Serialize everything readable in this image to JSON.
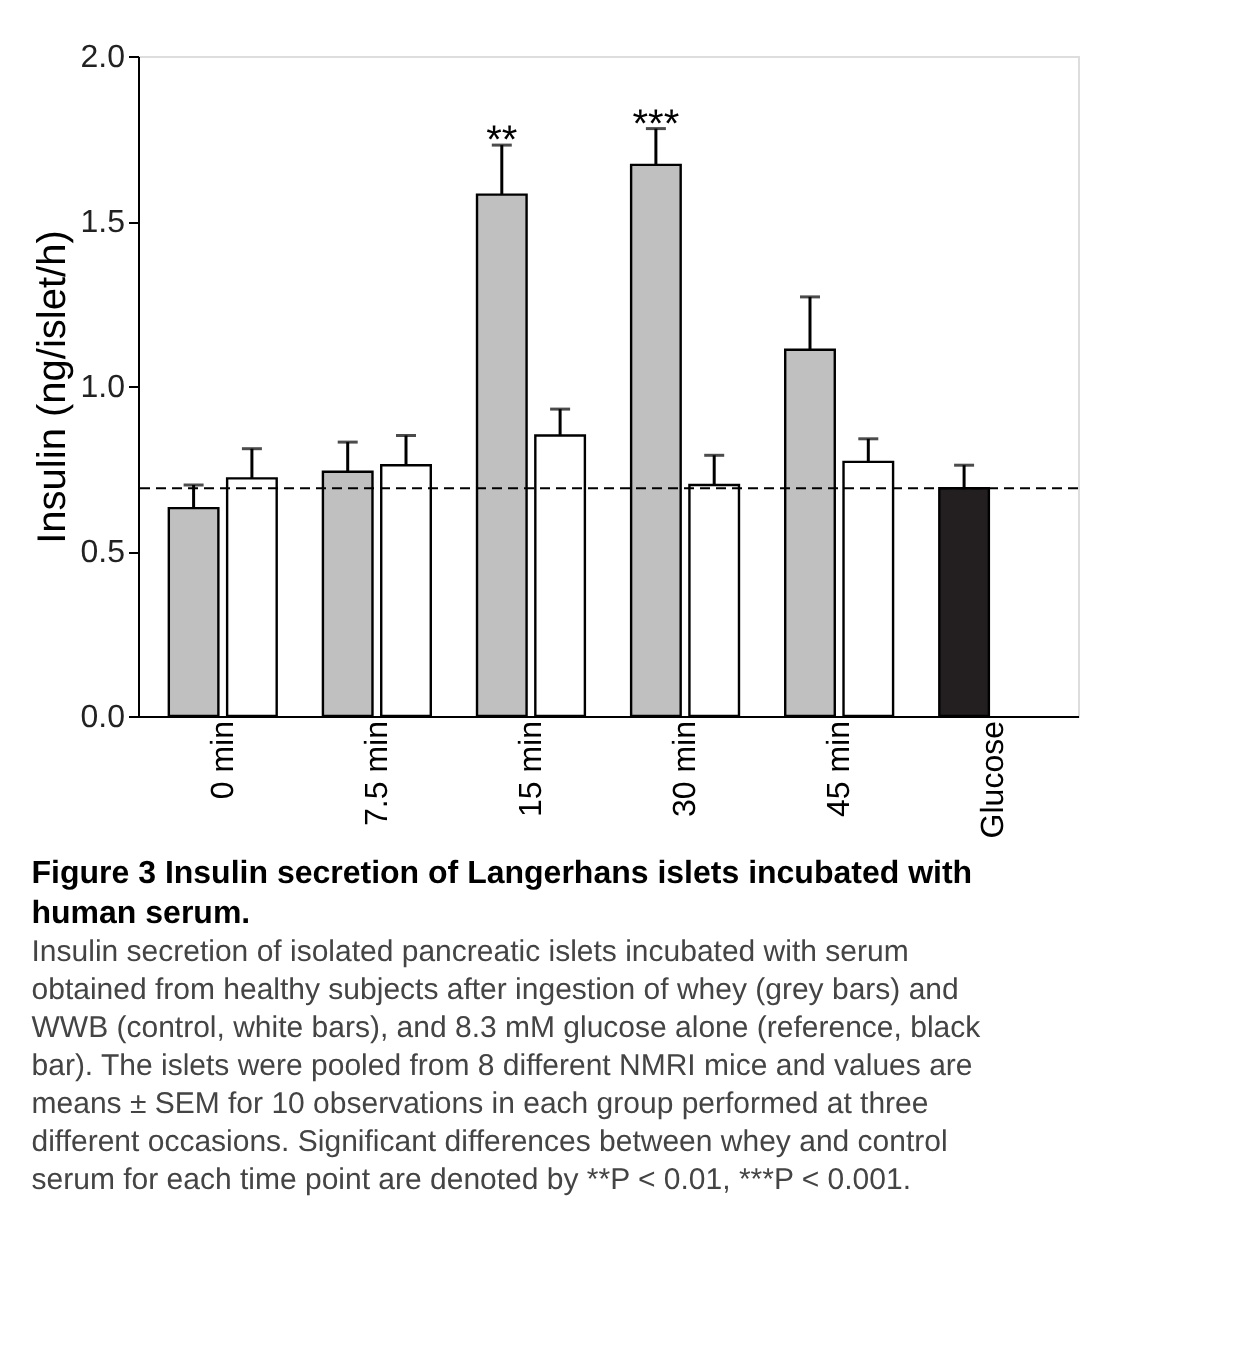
{
  "chart_data": {
    "type": "bar",
    "title": "Figure 3 Insulin secretion of Langerhans islets incubated with human serum.",
    "ylabel": "Insulin (ng/islet/h)",
    "categories": [
      "0 min",
      "7.5 min",
      "15 min",
      "30 min",
      "45 min",
      "Glucose"
    ],
    "series": [
      {
        "color": "#c0c0c0",
        "values": [
          0.63,
          0.74,
          1.58,
          1.67,
          1.11,
          null
        ],
        "errors": [
          [
            0.63,
            0.7
          ],
          [
            0.74,
            0.83
          ],
          [
            1.58,
            1.73
          ],
          [
            1.67,
            1.78
          ],
          [
            1.11,
            1.27
          ],
          null
        ]
      },
      {
        "color": "#ffffff",
        "values": [
          0.72,
          0.76,
          0.85,
          0.7,
          0.77,
          null
        ],
        "errors": [
          [
            0.72,
            0.81
          ],
          [
            0.76,
            0.85
          ],
          [
            0.85,
            0.93
          ],
          [
            0.7,
            0.79
          ],
          [
            0.77,
            0.84
          ],
          null
        ]
      },
      {
        "color": "#231f20",
        "values": [
          null,
          null,
          null,
          null,
          null,
          0.69
        ],
        "errors": [
          null,
          null,
          null,
          null,
          null,
          [
            0.69,
            0.76
          ]
        ]
      }
    ],
    "ylim": [
      0,
      2.0
    ],
    "yticks": [
      {
        "value": 0,
        "label": "0.0"
      },
      0.5,
      {
        "value": 1,
        "label": "1.0"
      },
      1.5,
      {
        "value": 2,
        "label": "2.0"
      }
    ],
    "ref_lines": [
      {
        "axis": "y",
        "value": 0.69,
        "line_style": "dashed",
        "color": "#000000"
      }
    ],
    "annotations": [
      {
        "text": "**",
        "x": "15 min",
        "y": 1.58
      },
      {
        "text": "***",
        "x": "30 min",
        "y": 1.67
      },
      "Insulin secretion of isolated pancreatic islets incubated with serum obtained from healthy subjects after ingestion of whey (grey bars) and WWB (control, white bars), and 8.3 mM glucose alone (reference, black bar). The islets were pooled from 8 different NMRI mice and values are means ± SEM for 10 observations in each group performed at three different occasions. Significant differences between whey and control serum for each time point are denoted by **P < 0.01, ***P < 0.001."
    ],
    "grid": false,
    "legend": false
  }
}
